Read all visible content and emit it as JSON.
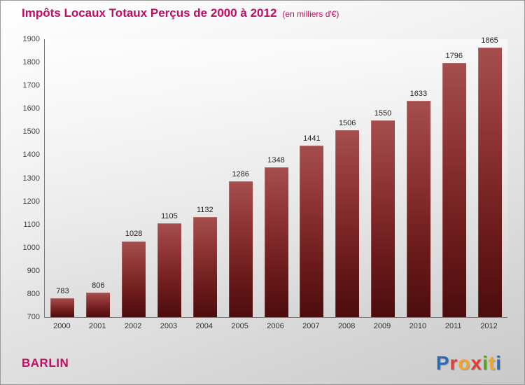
{
  "header": {
    "title": "Impôts Locaux Totaux Perçus de 2000 à 2012",
    "subtitle": "(en milliers d'€)"
  },
  "footer": {
    "location": "BARLIN",
    "logo_letters": [
      {
        "char": "P",
        "color": "#2f6bb3"
      },
      {
        "char": "r",
        "color": "#e03c31"
      },
      {
        "char": "o",
        "color": "#f5a623"
      },
      {
        "char": "x",
        "color": "#e03c31"
      },
      {
        "char": "i",
        "color": "#5aa51e"
      },
      {
        "char": "t",
        "color": "#f5a623"
      },
      {
        "char": "i",
        "color": "#2f6bb3"
      }
    ]
  },
  "colors": {
    "accent": "#c00d63",
    "bar_top": "#a64e4e",
    "bar_bottom": "#4c0d0d"
  },
  "chart_data": {
    "type": "bar",
    "title": "Impôts Locaux Totaux Perçus de 2000 à 2012",
    "subtitle": "(en milliers d'€)",
    "categories": [
      "2000",
      "2001",
      "2002",
      "2003",
      "2004",
      "2005",
      "2006",
      "2007",
      "2008",
      "2009",
      "2010",
      "2011",
      "2012"
    ],
    "values": [
      783,
      806,
      1028,
      1105,
      1132,
      1286,
      1348,
      1441,
      1506,
      1550,
      1633,
      1796,
      1865
    ],
    "xlabel": "",
    "ylabel": "",
    "ylim": [
      700,
      1900
    ],
    "ytick_step": 100,
    "grid": false,
    "legend": false,
    "value_labels": true
  }
}
